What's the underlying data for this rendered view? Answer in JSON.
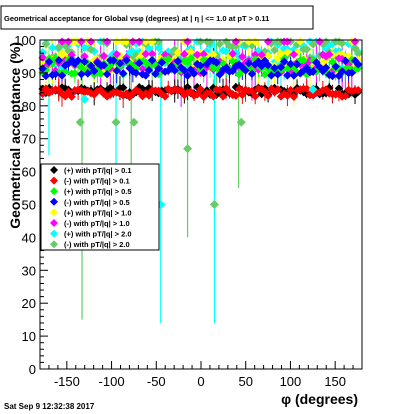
{
  "chart_data": {
    "type": "scatter",
    "title": "Geometrical acceptance for Global vsφ (degrees) at | η | <= 1.0 at pT > 0.11",
    "xlabel": "φ (degrees)",
    "ylabel": "Geometrical acceptance (%)",
    "xlim": [
      -180,
      180
    ],
    "ylim": [
      0,
      100
    ],
    "x_ticks": [
      -150,
      -100,
      -50,
      0,
      50,
      100,
      150
    ],
    "y_ticks": [
      0,
      10,
      20,
      30,
      40,
      50,
      60,
      70,
      80,
      90,
      100
    ],
    "grid": false,
    "legend_position": "left-middle",
    "timestamp": "Sat Sep  9 12:32:38 2017",
    "series": [
      {
        "name": "(+) with pT/|q| > 0.1",
        "color": "#000000",
        "marker": "diamond",
        "base": 84.5,
        "spread": 1.2
      },
      {
        "name": "(-) with pT/|q| > 0.1",
        "color": "#ff0000",
        "marker": "diamond",
        "base": 84.0,
        "spread": 1.3
      },
      {
        "name": "(+) with pT/|q| > 0.5",
        "color": "#00ff00",
        "marker": "diamond",
        "base": 92.0,
        "spread": 2.5
      },
      {
        "name": "(-) with pT/|q| > 0.5",
        "color": "#0000ff",
        "marker": "diamond",
        "base": 91.5,
        "spread": 2.5
      },
      {
        "name": "(+) with pT/|q| > 1.0",
        "color": "#ffff00",
        "marker": "diamond",
        "base": 93.5,
        "spread": 3.0
      },
      {
        "name": "(-) with pT/|q| > 1.0",
        "color": "#ff00ff",
        "marker": "diamond",
        "base": 93.0,
        "spread": 3.0
      },
      {
        "name": "(+) with pT/|q| > 2.0",
        "color": "#00ffff",
        "marker": "diamond",
        "base": 95.0,
        "spread": 4.0
      },
      {
        "name": "(-) with pT/|q| > 2.0",
        "color": "#66cc66",
        "marker": "diamond",
        "base": 95.5,
        "spread": 4.0
      }
    ],
    "notable_points": [
      {
        "series": 7,
        "x": -135,
        "y": 75
      },
      {
        "series": 7,
        "x": -95,
        "y": 75
      },
      {
        "series": 7,
        "x": -75,
        "y": 75
      },
      {
        "series": 6,
        "x": -45,
        "y": 50
      },
      {
        "series": 7,
        "x": -15,
        "y": 67
      },
      {
        "series": 7,
        "x": 15,
        "y": 50
      },
      {
        "series": 7,
        "x": 45,
        "y": 75
      },
      {
        "series": 6,
        "x": -130,
        "y": 82
      },
      {
        "series": 6,
        "x": 125,
        "y": 85
      }
    ],
    "deep_error_bars": [
      {
        "x": -133,
        "low": 15,
        "high": 100
      },
      {
        "x": -45,
        "low": 14,
        "high": 100
      },
      {
        "x": -15,
        "low": 40,
        "high": 100
      },
      {
        "x": 15,
        "low": 14,
        "high": 100
      },
      {
        "x": 42,
        "low": 55,
        "high": 100
      },
      {
        "x": -95,
        "low": 55,
        "high": 100
      },
      {
        "x": -78,
        "low": 50,
        "high": 100
      },
      {
        "x": -170,
        "low": 65,
        "high": 100
      }
    ]
  }
}
